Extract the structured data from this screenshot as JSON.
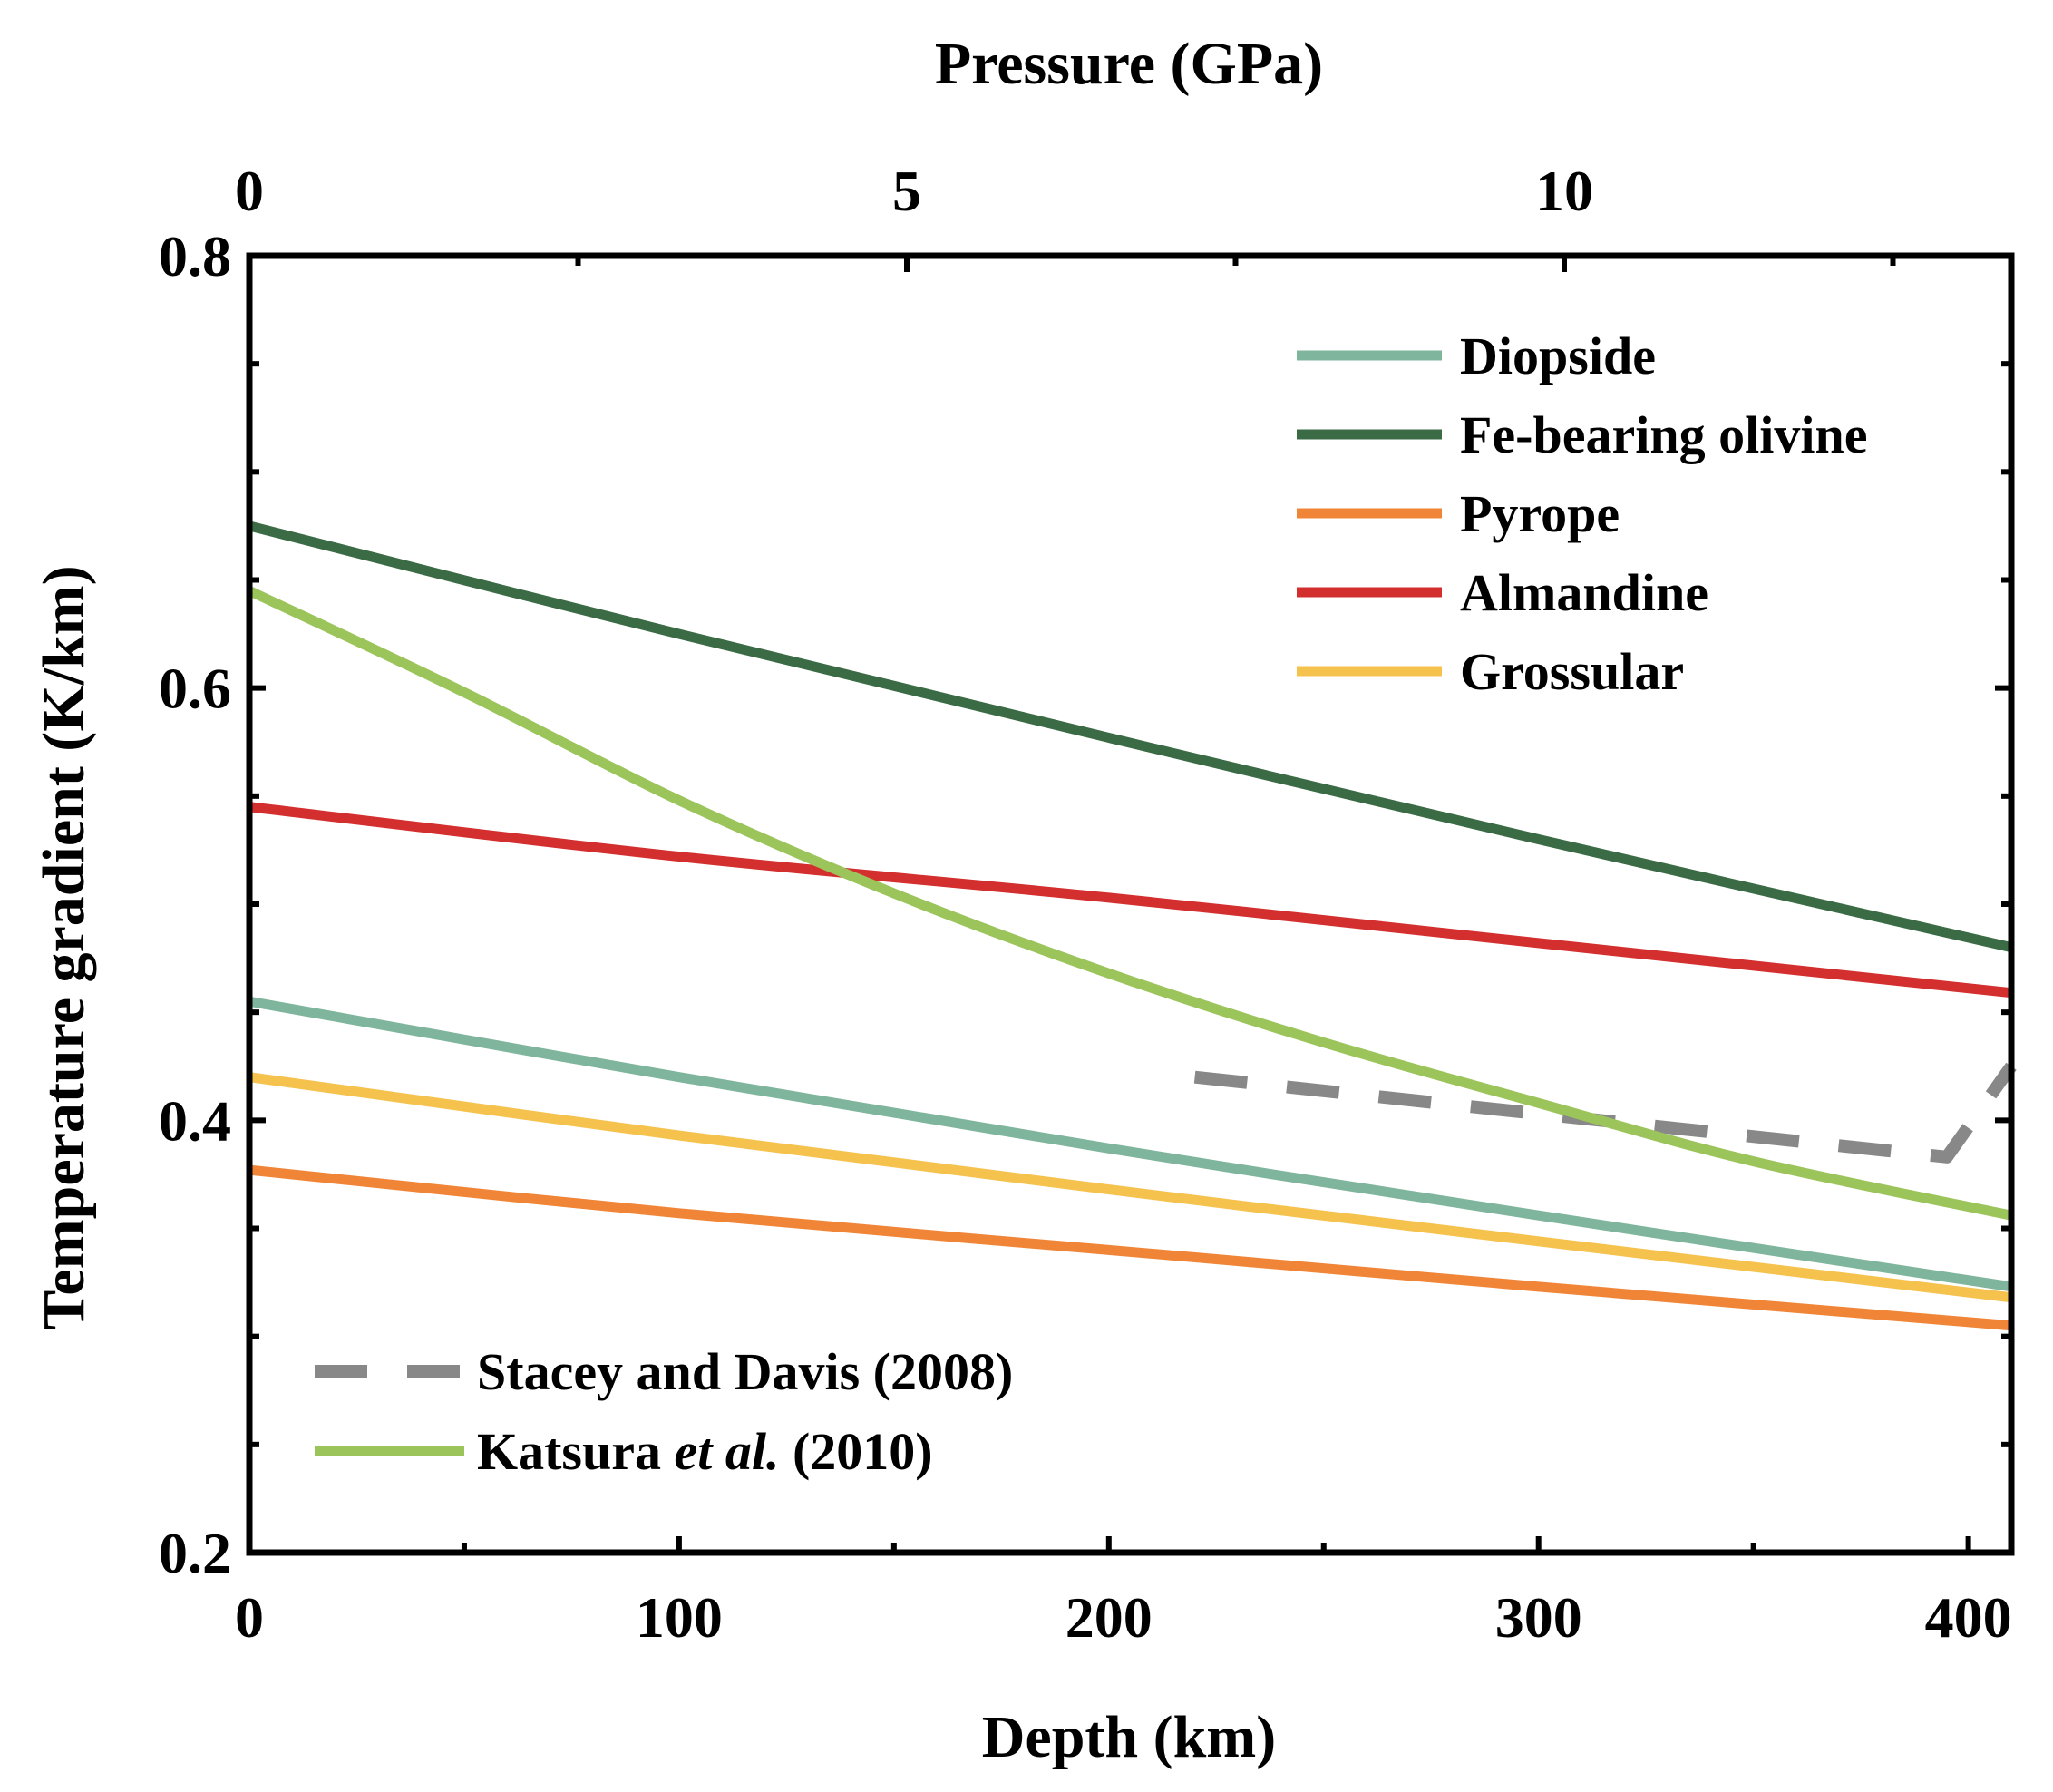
{
  "chart_data": {
    "type": "line",
    "title": "",
    "xlabel": "Depth (km)",
    "ylabel": "Temperature gradient (K/km)",
    "x2label": "Pressure (GPa)",
    "xlim": [
      0,
      410
    ],
    "ylim": [
      0.2,
      0.8
    ],
    "x2lim": [
      0,
      13.4
    ],
    "xticks": [
      0,
      100,
      200,
      300,
      400
    ],
    "xtick_labels": [
      "0",
      "100",
      "200",
      "300",
      "400"
    ],
    "yticks": [
      0.2,
      0.4,
      0.6,
      0.8
    ],
    "ytick_labels": [
      "0.2",
      "0.4",
      "0.6",
      "0.8"
    ],
    "x2ticks": [
      0,
      5,
      10
    ],
    "x2tick_labels": [
      "0",
      "5",
      "10"
    ],
    "grid": false,
    "legend_position": "top-right",
    "series": [
      {
        "name": "Diopside",
        "color": "#7fb59c",
        "style": "solid",
        "x": [
          0,
          100,
          200,
          300,
          410
        ],
        "y": [
          0.455,
          0.42,
          0.387,
          0.356,
          0.323
        ]
      },
      {
        "name": "Fe-bearing olivine",
        "color": "#3b6b45",
        "style": "solid",
        "x": [
          0,
          100,
          200,
          300,
          410
        ],
        "y": [
          0.675,
          0.625,
          0.577,
          0.53,
          0.48
        ]
      },
      {
        "name": "Pyrope",
        "color": "#f08537",
        "style": "solid",
        "x": [
          0,
          100,
          200,
          300,
          410
        ],
        "y": [
          0.377,
          0.357,
          0.34,
          0.323,
          0.305
        ]
      },
      {
        "name": "Almandine",
        "color": "#d42f2f",
        "style": "solid",
        "x": [
          0,
          100,
          200,
          300,
          410
        ],
        "y": [
          0.545,
          0.522,
          0.503,
          0.482,
          0.459
        ]
      },
      {
        "name": "Grossular",
        "color": "#f5c24e",
        "style": "solid",
        "x": [
          0,
          100,
          200,
          300,
          410
        ],
        "y": [
          0.42,
          0.393,
          0.368,
          0.344,
          0.318
        ]
      },
      {
        "name": "Stacey and Davis (2008)",
        "color": "#888888",
        "style": "dashed",
        "x": [
          220,
          300,
          395,
          410
        ],
        "y": [
          0.42,
          0.403,
          0.383,
          0.425
        ]
      },
      {
        "name": "Katsura et al. (2010)",
        "color": "#9bc45a",
        "style": "solid",
        "x": [
          0,
          50,
          100,
          150,
          200,
          250,
          300,
          350,
          410
        ],
        "y": [
          0.645,
          0.598,
          0.548,
          0.505,
          0.468,
          0.436,
          0.408,
          0.381,
          0.356
        ]
      }
    ],
    "legend_top": [
      {
        "series": "Diopside",
        "label": "Diopside"
      },
      {
        "series": "Fe-bearing olivine",
        "label": "Fe-bearing olivine"
      },
      {
        "series": "Pyrope",
        "label": "Pyrope"
      },
      {
        "series": "Almandine",
        "label": "Almandine"
      },
      {
        "series": "Grossular",
        "label": "Grossular"
      }
    ],
    "legend_bottom": [
      {
        "series": "Stacey and Davis (2008)",
        "label": "Stacey and Davis (2008)"
      },
      {
        "series": "Katsura et al. (2010)",
        "label_main": "Katsura ",
        "label_italic": "et al.",
        "label_tail": " (2010)"
      }
    ]
  }
}
